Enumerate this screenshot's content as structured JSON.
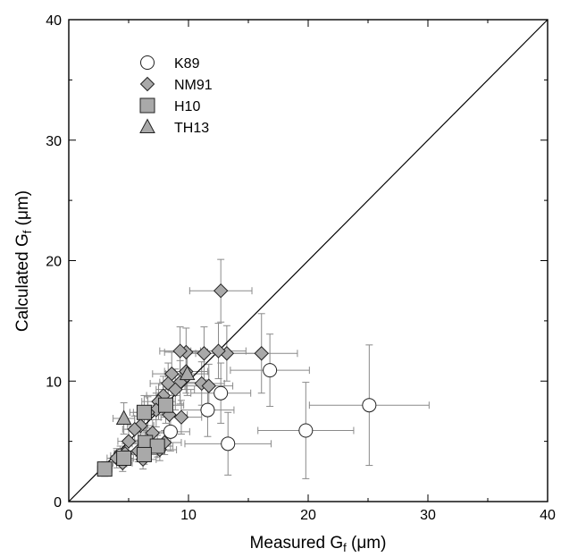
{
  "chart_data": {
    "type": "scatter",
    "xlabel": "Measured G",
    "xlabel_sub": "f",
    "xlabel_unit": " (μm)",
    "ylabel": "Calculated G",
    "ylabel_sub": "f",
    "ylabel_unit": " (μm)",
    "xlim": [
      0,
      40
    ],
    "ylim": [
      0,
      40
    ],
    "x_ticks": [
      0,
      10,
      20,
      30,
      40
    ],
    "y_ticks": [
      0,
      10,
      20,
      30,
      40
    ],
    "x_tick_labels": [
      "0",
      "10",
      "20",
      "30",
      "40"
    ],
    "y_tick_labels": [
      "0",
      "10",
      "20",
      "30",
      "40"
    ],
    "reference_line": {
      "from": [
        0,
        0
      ],
      "to": [
        40,
        40
      ]
    },
    "grid": false,
    "legend_position": "top-left",
    "series": [
      {
        "name": "K89",
        "marker": "circle",
        "fill": "#ffffff",
        "points": [
          {
            "x": 25.1,
            "y": 8.0,
            "xerr": 5.0,
            "yerr": 5.0
          },
          {
            "x": 19.8,
            "y": 5.9,
            "xerr": 4.0,
            "yerr": 4.0
          },
          {
            "x": 16.8,
            "y": 10.9,
            "xerr": 3.3,
            "yerr": 3.0
          },
          {
            "x": 13.3,
            "y": 4.8,
            "xerr": 3.6,
            "yerr": 2.6
          },
          {
            "x": 12.7,
            "y": 9.0,
            "xerr": 2.5,
            "yerr": 2.5
          },
          {
            "x": 11.6,
            "y": 7.6,
            "xerr": 2.2,
            "yerr": 2.2
          },
          {
            "x": 8.5,
            "y": 5.8,
            "xerr": 1.6,
            "yerr": 1.6
          },
          {
            "x": 4.3,
            "y": 3.8,
            "xerr": 0.8,
            "yerr": 0.8
          }
        ]
      },
      {
        "name": "NM91",
        "marker": "diamond",
        "fill": "#a9a9a9",
        "points": [
          {
            "x": 12.7,
            "y": 17.5,
            "xerr": 2.6,
            "yerr": 2.6
          },
          {
            "x": 16.1,
            "y": 12.3,
            "xerr": 3.0,
            "yerr": 3.3
          },
          {
            "x": 13.2,
            "y": 12.3,
            "xerr": 2.6,
            "yerr": 2.3
          },
          {
            "x": 12.5,
            "y": 12.5,
            "xerr": 2.3,
            "yerr": 2.3
          },
          {
            "x": 11.3,
            "y": 12.3,
            "xerr": 2.0,
            "yerr": 2.2
          },
          {
            "x": 9.8,
            "y": 12.4,
            "xerr": 1.8,
            "yerr": 2.0
          },
          {
            "x": 9.3,
            "y": 12.5,
            "xerr": 1.7,
            "yerr": 2.0
          },
          {
            "x": 11.1,
            "y": 9.8,
            "xerr": 1.9,
            "yerr": 1.8
          },
          {
            "x": 11.7,
            "y": 9.6,
            "xerr": 2.0,
            "yerr": 1.8
          },
          {
            "x": 9.8,
            "y": 10.8,
            "xerr": 1.8,
            "yerr": 1.8
          },
          {
            "x": 9.3,
            "y": 9.9,
            "xerr": 1.7,
            "yerr": 1.8
          },
          {
            "x": 8.6,
            "y": 10.6,
            "xerr": 1.6,
            "yerr": 1.8
          },
          {
            "x": 8.3,
            "y": 9.8,
            "xerr": 1.5,
            "yerr": 1.7
          },
          {
            "x": 8.9,
            "y": 9.3,
            "xerr": 1.6,
            "yerr": 1.7
          },
          {
            "x": 7.9,
            "y": 8.8,
            "xerr": 1.4,
            "yerr": 1.6
          },
          {
            "x": 7.5,
            "y": 8.3,
            "xerr": 1.4,
            "yerr": 1.5
          },
          {
            "x": 9.4,
            "y": 7.0,
            "xerr": 1.7,
            "yerr": 1.4
          },
          {
            "x": 8.4,
            "y": 7.2,
            "xerr": 1.5,
            "yerr": 1.4
          },
          {
            "x": 7.3,
            "y": 7.6,
            "xerr": 1.3,
            "yerr": 1.4
          },
          {
            "x": 6.6,
            "y": 7.4,
            "xerr": 1.2,
            "yerr": 1.3
          },
          {
            "x": 6.0,
            "y": 6.3,
            "xerr": 1.1,
            "yerr": 1.2
          },
          {
            "x": 5.5,
            "y": 6.0,
            "xerr": 1.0,
            "yerr": 1.1
          },
          {
            "x": 7.0,
            "y": 5.7,
            "xerr": 1.2,
            "yerr": 1.1
          },
          {
            "x": 5.0,
            "y": 5.0,
            "xerr": 0.9,
            "yerr": 1.0
          },
          {
            "x": 6.5,
            "y": 4.8,
            "xerr": 1.2,
            "yerr": 1.0
          },
          {
            "x": 8.0,
            "y": 4.9,
            "xerr": 1.4,
            "yerr": 1.0
          },
          {
            "x": 7.6,
            "y": 4.3,
            "xerr": 1.4,
            "yerr": 0.9
          },
          {
            "x": 5.8,
            "y": 4.2,
            "xerr": 1.0,
            "yerr": 0.9
          },
          {
            "x": 4.7,
            "y": 4.0,
            "xerr": 0.9,
            "yerr": 0.8
          },
          {
            "x": 4.0,
            "y": 3.6,
            "xerr": 0.8,
            "yerr": 0.8
          },
          {
            "x": 4.5,
            "y": 3.2,
            "xerr": 0.8,
            "yerr": 0.7
          },
          {
            "x": 6.2,
            "y": 3.5,
            "xerr": 1.1,
            "yerr": 0.8
          }
        ]
      },
      {
        "name": "H10",
        "marker": "square",
        "fill": "#a9a9a9",
        "points": [
          {
            "x": 8.1,
            "y": 8.0,
            "xerr": 1.5,
            "yerr": 1.5
          },
          {
            "x": 6.3,
            "y": 7.4,
            "xerr": 1.2,
            "yerr": 1.4
          },
          {
            "x": 6.4,
            "y": 4.9,
            "xerr": 1.2,
            "yerr": 1.0
          },
          {
            "x": 7.4,
            "y": 4.6,
            "xerr": 1.3,
            "yerr": 0.9
          },
          {
            "x": 6.3,
            "y": 3.9,
            "xerr": 1.1,
            "yerr": 0.8
          },
          {
            "x": 4.6,
            "y": 3.6,
            "xerr": 0.8,
            "yerr": 0.7
          },
          {
            "x": 3.0,
            "y": 2.7,
            "xerr": 0.6,
            "yerr": 0.6
          }
        ]
      },
      {
        "name": "TH13",
        "marker": "triangle",
        "fill": "#a9a9a9",
        "points": [
          {
            "x": 4.6,
            "y": 6.9,
            "xerr": 0.9,
            "yerr": 1.3
          },
          {
            "x": 9.9,
            "y": 10.6,
            "xerr": 1.8,
            "yerr": 1.8
          }
        ]
      }
    ]
  }
}
